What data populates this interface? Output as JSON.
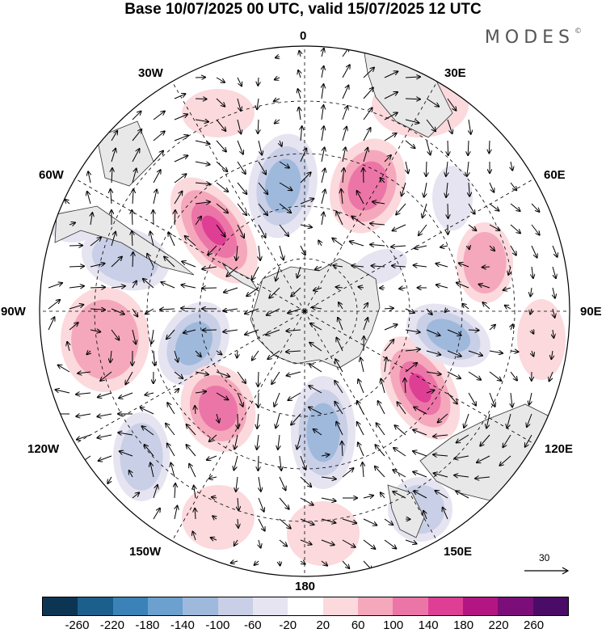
{
  "title": "Base 10/07/2025 00 UTC, valid 15/07/2025 12 UTC",
  "brand": "MODES",
  "brand_mark": "©",
  "longitude_labels": {
    "n": "0",
    "s": "180",
    "w": "90W",
    "e": "90E",
    "w30": "30W",
    "e30": "30E",
    "w60": "60W",
    "e60": "60E",
    "w120": "120W",
    "e120": "120E",
    "w150": "150W",
    "e150": "150E"
  },
  "reference_vector": "30",
  "colorbar": {
    "ticks": [
      "-260",
      "-220",
      "-180",
      "-140",
      "-100",
      "-60",
      "-20",
      "20",
      "60",
      "100",
      "140",
      "180",
      "220",
      "260"
    ],
    "colors": [
      "#0c3553",
      "#1b5f8d",
      "#3b82b8",
      "#6ba0cf",
      "#9fb9dc",
      "#c8cfe6",
      "#e6e4f1",
      "#ffffff",
      "#fbd9dd",
      "#f5a8bb",
      "#ec75a7",
      "#de3f95",
      "#b31682",
      "#7c0e79",
      "#4a0c66"
    ]
  },
  "map": {
    "projection": "south-polar-stereographic",
    "anomaly_field": "height",
    "land_color": "#e8e8e8",
    "coast_color": "#333333"
  }
}
